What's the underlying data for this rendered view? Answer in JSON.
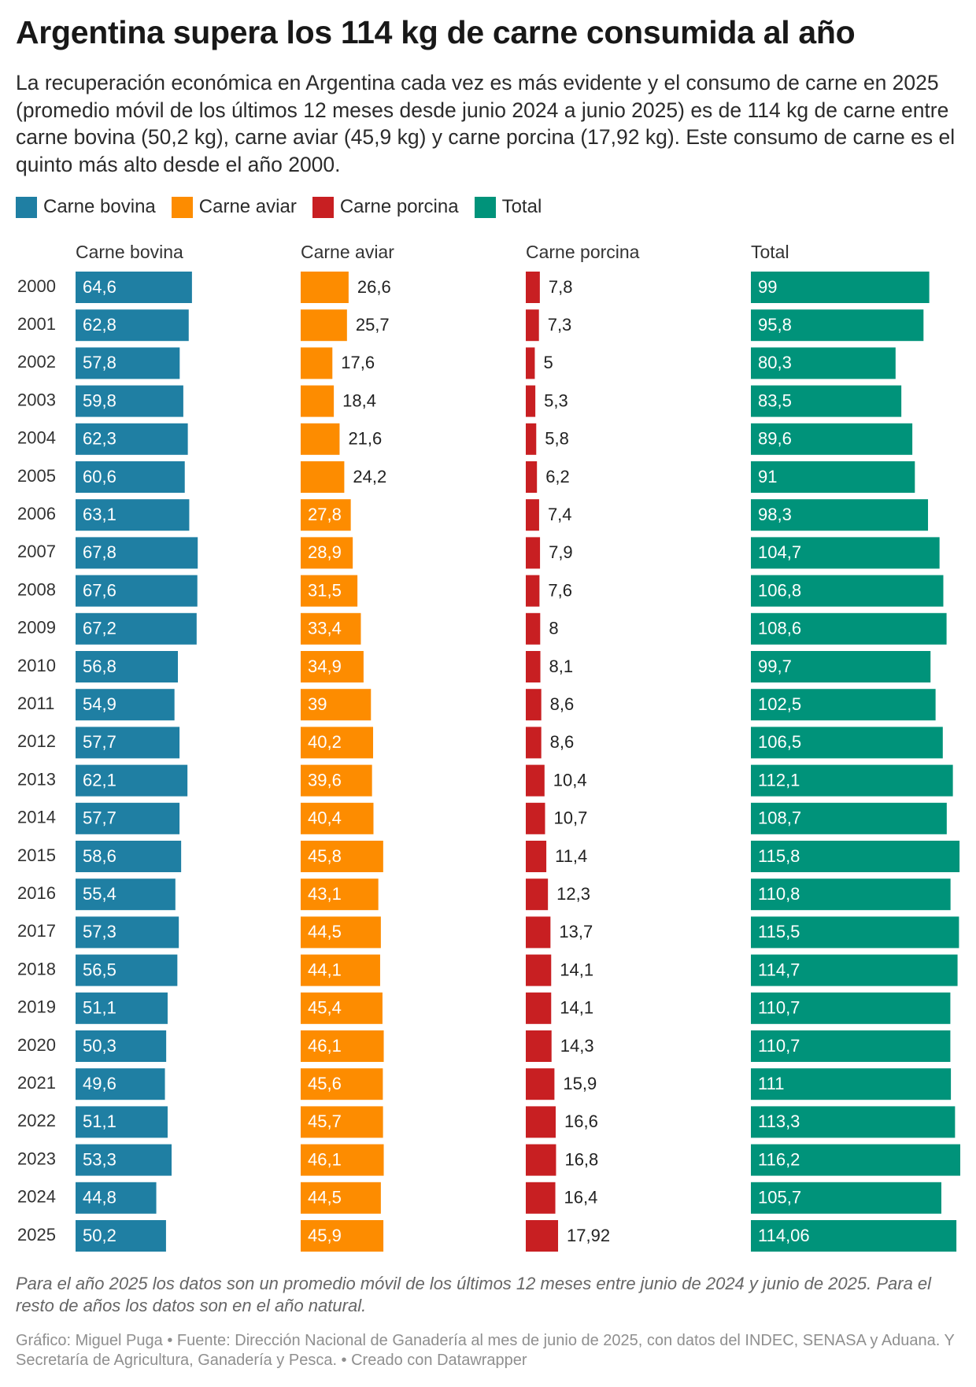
{
  "title": "Argentina supera los 114 kg de carne consumida al año",
  "subtitle": "La recuperación económica en Argentina cada vez es más evidente y el consumo de carne en 2025 (promedio móvil de los últimos 12 meses desde junio 2024 a junio 2025) es de 114 kg de carne entre carne bovina (50,2 kg), carne aviar (45,9 kg) y carne porcina (17,92 kg). Este consumo de carne es el quinto más alto desde el año 2000.",
  "legend": [
    {
      "label": "Carne bovina",
      "color": "#1f7fa3"
    },
    {
      "label": "Carne aviar",
      "color": "#fd8c00"
    },
    {
      "label": "Carne porcina",
      "color": "#c81f22"
    },
    {
      "label": "Total",
      "color": "#00937a"
    }
  ],
  "chart_data": {
    "type": "bar",
    "orientation": "horizontal",
    "layout": "small-multiples",
    "categories": [
      "2000",
      "2001",
      "2002",
      "2003",
      "2004",
      "2005",
      "2006",
      "2007",
      "2008",
      "2009",
      "2010",
      "2011",
      "2012",
      "2013",
      "2014",
      "2015",
      "2016",
      "2017",
      "2018",
      "2019",
      "2020",
      "2021",
      "2022",
      "2023",
      "2024",
      "2025"
    ],
    "series": [
      {
        "name": "Carne bovina",
        "color": "#1f7fa3",
        "values": [
          64.6,
          62.8,
          57.8,
          59.8,
          62.3,
          60.6,
          63.1,
          67.8,
          67.6,
          67.2,
          56.8,
          54.9,
          57.7,
          62.1,
          57.7,
          58.6,
          55.4,
          57.3,
          56.5,
          51.1,
          50.3,
          49.6,
          51.1,
          53.3,
          44.8,
          50.2
        ],
        "labels": [
          "64,6",
          "62,8",
          "57,8",
          "59,8",
          "62,3",
          "60,6",
          "63,1",
          "67,8",
          "67,6",
          "67,2",
          "56,8",
          "54,9",
          "57,7",
          "62,1",
          "57,7",
          "58,6",
          "55,4",
          "57,3",
          "56,5",
          "51,1",
          "50,3",
          "49,6",
          "51,1",
          "53,3",
          "44,8",
          "50,2"
        ]
      },
      {
        "name": "Carne aviar",
        "color": "#fd8c00",
        "values": [
          26.6,
          25.7,
          17.6,
          18.4,
          21.6,
          24.2,
          27.8,
          28.9,
          31.5,
          33.4,
          34.9,
          39,
          40.2,
          39.6,
          40.4,
          45.8,
          43.1,
          44.5,
          44.1,
          45.4,
          46.1,
          45.6,
          45.7,
          46.1,
          44.5,
          45.9
        ],
        "labels": [
          "26,6",
          "25,7",
          "17,6",
          "18,4",
          "21,6",
          "24,2",
          "27,8",
          "28,9",
          "31,5",
          "33,4",
          "34,9",
          "39",
          "40,2",
          "39,6",
          "40,4",
          "45,8",
          "43,1",
          "44,5",
          "44,1",
          "45,4",
          "46,1",
          "45,6",
          "45,7",
          "46,1",
          "44,5",
          "45,9"
        ]
      },
      {
        "name": "Carne porcina",
        "color": "#c81f22",
        "values": [
          7.8,
          7.3,
          5,
          5.3,
          5.8,
          6.2,
          7.4,
          7.9,
          7.6,
          8,
          8.1,
          8.6,
          8.6,
          10.4,
          10.7,
          11.4,
          12.3,
          13.7,
          14.1,
          14.1,
          14.3,
          15.9,
          16.6,
          16.8,
          16.4,
          17.92
        ],
        "labels": [
          "7,8",
          "7,3",
          "5",
          "5,3",
          "5,8",
          "6,2",
          "7,4",
          "7,9",
          "7,6",
          "8",
          "8,1",
          "8,6",
          "8,6",
          "10,4",
          "10,7",
          "11,4",
          "12,3",
          "13,7",
          "14,1",
          "14,1",
          "14,3",
          "15,9",
          "16,6",
          "16,8",
          "16,4",
          "17,92"
        ]
      },
      {
        "name": "Total",
        "color": "#00937a",
        "values": [
          99,
          95.8,
          80.3,
          83.5,
          89.6,
          91,
          98.3,
          104.7,
          106.8,
          108.6,
          99.7,
          102.5,
          106.5,
          112.1,
          108.7,
          115.8,
          110.8,
          115.5,
          114.7,
          110.7,
          110.7,
          111,
          113.3,
          116.2,
          105.7,
          114.06
        ],
        "labels": [
          "99",
          "95,8",
          "80,3",
          "83,5",
          "89,6",
          "91",
          "98,3",
          "104,7",
          "106,8",
          "108,6",
          "99,7",
          "102,5",
          "106,5",
          "112,1",
          "108,7",
          "115,8",
          "110,8",
          "115,5",
          "114,7",
          "110,7",
          "110,7",
          "111",
          "113,3",
          "116,2",
          "105,7",
          "114,06"
        ]
      }
    ],
    "panel_titles": [
      "Carne bovina",
      "Carne aviar",
      "Carne porcina",
      "Total"
    ],
    "xlim": [
      0,
      116.2
    ],
    "shared_scale": true,
    "unit": "kg"
  },
  "note": "Para el año 2025 los datos son un promedio móvil de los últimos 12 meses entre junio de 2024 y junio de 2025. Para el resto de años los datos son en el año natural.",
  "footer": "Gráfico: Miguel Puga • Fuente: Dirección Nacional de Ganadería al mes de junio de 2025, con datos del INDEC, SENASA y Aduana. Y Secretaría de Agricultura, Ganadería y Pesca. • Creado con Datawrapper"
}
